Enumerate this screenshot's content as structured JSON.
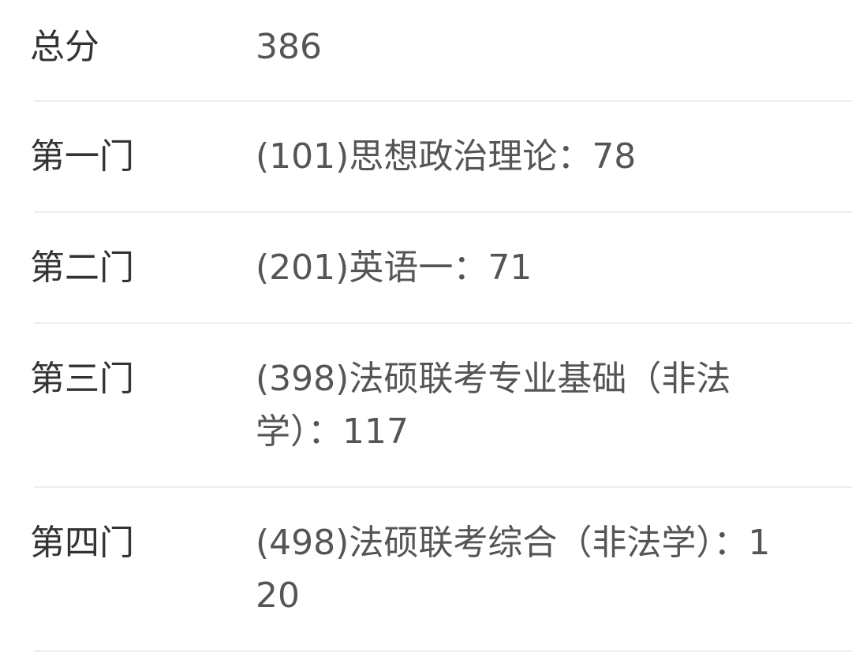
{
  "scores": [
    {
      "label": "总分",
      "value": "386"
    },
    {
      "label": "第一门",
      "value": "(101)思想政治理论：78"
    },
    {
      "label": "第二门",
      "value": "(201)英语一：71"
    },
    {
      "label": "第三门",
      "value": "(398)法硕联考专业基础（非法学）：117"
    },
    {
      "label": "第四门",
      "value": "(498)法硕联考综合（非法学）：120"
    }
  ]
}
